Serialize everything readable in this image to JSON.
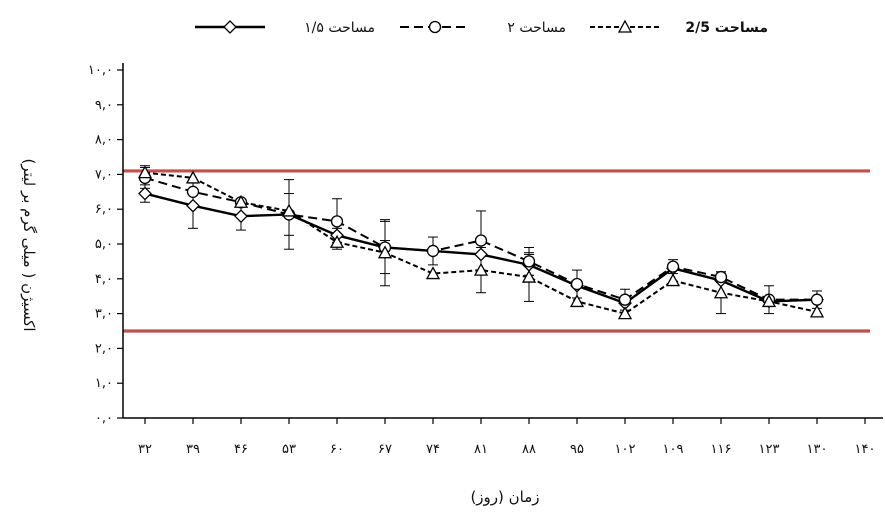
{
  "chart_data": {
    "type": "line",
    "xlabel": "زمان (روز)",
    "ylabel": "اکسیژن ( میلی گرم بر لیتر)",
    "ylim": [
      0,
      10
    ],
    "yticks": [
      "۰,۰",
      "۱,۰",
      "۲,۰",
      "۳,۰",
      "۴,۰",
      "۵,۰",
      "۶,۰",
      "۷,۰",
      "۸,۰",
      "۹,۰",
      "۱۰,۰"
    ],
    "x_positions": [
      32,
      39,
      46,
      53,
      60,
      67,
      74,
      81,
      88,
      95,
      102,
      109,
      116,
      123,
      130,
      140
    ],
    "x_tick_labels": [
      "۳۲",
      "۳۹",
      "۴۶",
      "۵۳",
      "۶۰",
      "۶۷",
      "۷۴",
      "۸۱",
      "۸۸",
      "۹۵",
      "۱۰۲",
      "۱۰۹",
      "۱۱۶",
      "۱۲۳",
      "۱۳۰",
      "۱۴۰"
    ],
    "x_data": [
      32,
      39,
      46,
      53,
      60,
      67,
      74,
      81,
      88,
      95,
      102,
      109,
      116,
      123,
      130
    ],
    "reference_lines": [
      7.1,
      2.5
    ],
    "reference_color": "#c0504d",
    "series": [
      {
        "name": "مساحت ۱/۵",
        "marker": "diamond",
        "line": "solid",
        "values": [
          6.45,
          6.1,
          5.8,
          5.85,
          5.25,
          4.9,
          4.8,
          4.7,
          4.4,
          3.8,
          3.3,
          4.3,
          3.95,
          3.35,
          3.4
        ],
        "errors": [
          0.25,
          0.65,
          0.4,
          1.0,
          0.2,
          0.2,
          0.0,
          0.0,
          0.3,
          0.0,
          0.0,
          0.0,
          0.0,
          0.0,
          0.0
        ]
      },
      {
        "name": "مساحت ۲",
        "marker": "circle",
        "line": "dash",
        "values": [
          6.9,
          6.5,
          6.2,
          5.85,
          5.65,
          4.9,
          4.8,
          5.1,
          4.5,
          3.85,
          3.4,
          4.35,
          4.05,
          3.4,
          3.4
        ],
        "errors": [
          0.3,
          0.0,
          0.0,
          0.6,
          0.65,
          0.75,
          0.4,
          0.85,
          0.4,
          0.4,
          0.3,
          0.2,
          0.15,
          0.4,
          0.25
        ]
      },
      {
        "name": "مساحت 2/5",
        "marker": "triangle",
        "line": "shortdash",
        "values": [
          7.05,
          6.9,
          6.2,
          5.95,
          5.05,
          4.75,
          4.15,
          4.25,
          4.05,
          3.35,
          3.0,
          3.95,
          3.6,
          3.35,
          3.05
        ],
        "errors": [
          0.2,
          0.0,
          0.0,
          0.0,
          0.2,
          0.95,
          0.0,
          0.65,
          0.7,
          0.0,
          0.0,
          0.0,
          0.6,
          0.0,
          0.0
        ]
      }
    ],
    "legend": "top-center",
    "grid": false
  }
}
